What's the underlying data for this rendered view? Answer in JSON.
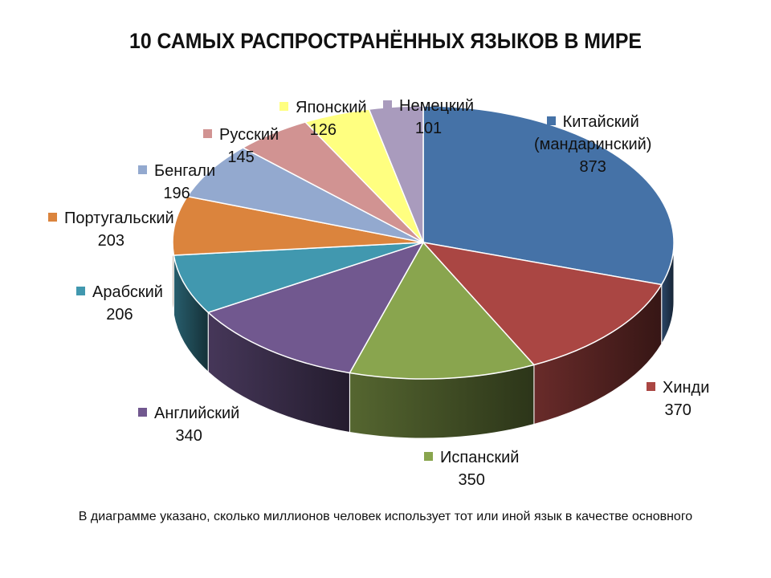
{
  "chart_data": {
    "type": "pie",
    "title": "10 САМЫХ РАСПРОСТРАНЁННЫХ ЯЗЫКОВ В МИРЕ",
    "note": "В диаграмме указано, сколько миллионов человек использует тот или иной язык в качестве основного",
    "three_d": true,
    "slices": [
      {
        "name": "Китайский (мандаринский)",
        "value": 873,
        "color": "#4572A7"
      },
      {
        "name": "Хинди",
        "value": 370,
        "color": "#AA4643"
      },
      {
        "name": "Испанский",
        "value": 350,
        "color": "#89A54E"
      },
      {
        "name": "Английский",
        "value": 340,
        "color": "#71588F"
      },
      {
        "name": "Арабский",
        "value": 206,
        "color": "#4198AF"
      },
      {
        "name": "Португальский",
        "value": 203,
        "color": "#DB843D"
      },
      {
        "name": "Бенгали",
        "value": 196,
        "color": "#93A9CF"
      },
      {
        "name": "Русский",
        "value": 145,
        "color": "#D19392"
      },
      {
        "name": "Японский",
        "value": 126,
        "color": "#FFFF80"
      },
      {
        "name": "Немецкий",
        "value": 101,
        "color": "#A99BBD"
      }
    ]
  }
}
